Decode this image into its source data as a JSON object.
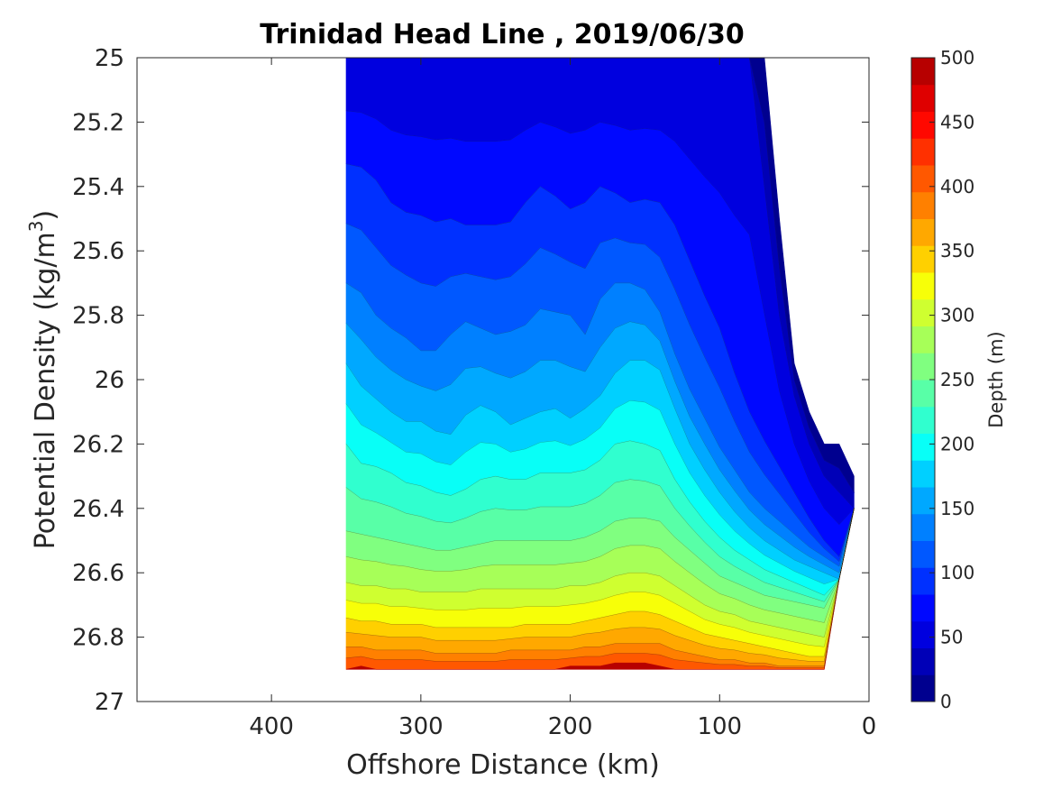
{
  "chart_data": {
    "type": "heatmap",
    "subtype": "filled-contour",
    "title": "Trinidad Head Line , 2019/06/30",
    "xlabel": "Offshore Distance (km)",
    "ylabel_main": "Potential Density (kg/m",
    "ylabel_sup": "3",
    "ylabel_tail": ")",
    "xlim": [
      490,
      0
    ],
    "x_reversed": true,
    "ylim": [
      25,
      27
    ],
    "y_reversed": true,
    "x_ticks": [
      "400",
      "300",
      "200",
      "100",
      "0"
    ],
    "y_ticks": [
      "25",
      "25.2",
      "25.4",
      "25.6",
      "25.8",
      "26",
      "26.2",
      "26.4",
      "26.6",
      "26.8",
      "27"
    ],
    "colorbar": {
      "label": "Depth (m)",
      "range": [
        0,
        500
      ],
      "ticks": [
        "0",
        "50",
        "100",
        "150",
        "200",
        "250",
        "300",
        "350",
        "400",
        "450",
        "500"
      ],
      "levels": [
        0,
        25,
        50,
        75,
        100,
        125,
        150,
        175,
        200,
        225,
        250,
        275,
        300,
        325,
        350,
        375,
        400,
        425,
        450,
        475,
        500
      ],
      "colors": [
        "#00008f",
        "#0000b7",
        "#0000df",
        "#0008ff",
        "#0030ff",
        "#0058ff",
        "#0080ff",
        "#00a8ff",
        "#00d0ff",
        "#08fff7",
        "#30ffcf",
        "#58ffa7",
        "#80ff80",
        "#a7ff58",
        "#cfff30",
        "#f7ff08",
        "#ffd000",
        "#ffa800",
        "#ff8000",
        "#ff5800",
        "#ff3000",
        "#ff0800",
        "#df0000",
        "#b70000"
      ]
    },
    "colormap": "jet",
    "x": [
      350,
      340,
      330,
      320,
      310,
      300,
      290,
      280,
      270,
      260,
      250,
      240,
      230,
      220,
      210,
      200,
      190,
      180,
      170,
      160,
      150,
      140,
      130,
      120,
      110,
      100,
      90,
      80,
      70,
      60,
      50,
      40,
      30,
      20,
      10
    ],
    "y_bottom": [
      26.9,
      26.9,
      26.9,
      26.9,
      26.9,
      26.9,
      26.9,
      26.9,
      26.9,
      26.9,
      26.9,
      26.9,
      26.9,
      26.9,
      26.9,
      26.9,
      26.9,
      26.9,
      26.9,
      26.9,
      26.9,
      26.9,
      26.9,
      26.9,
      26.9,
      26.9,
      26.9,
      26.9,
      26.9,
      26.9,
      26.9,
      26.9,
      26.9,
      26.62,
      26.4
    ],
    "y_top": [
      25,
      25,
      25,
      25,
      25,
      25,
      25,
      25,
      25,
      25,
      25,
      25,
      25,
      25,
      25,
      25,
      25,
      25,
      25,
      25,
      25,
      25,
      25,
      25,
      25,
      25,
      25,
      25,
      25,
      25.5,
      25.95,
      26.1,
      26.2,
      26.2,
      26.3
    ],
    "depth_50m": [
      25,
      25,
      25,
      25,
      25,
      25,
      25,
      25,
      25,
      25,
      25,
      25,
      25,
      25,
      25,
      25,
      25,
      25,
      25,
      25,
      25,
      25,
      25,
      25,
      25,
      25,
      25,
      25,
      25.4,
      25.8,
      26.05,
      26.2,
      26.3,
      26.35,
      26.4
    ],
    "depth_100m": [
      25.33,
      25.34,
      25.38,
      25.45,
      25.48,
      25.49,
      25.51,
      25.5,
      25.52,
      25.52,
      25.52,
      25.51,
      25.45,
      25.4,
      25.43,
      25.47,
      25.45,
      25.4,
      25.42,
      25.45,
      25.44,
      25.45,
      25.52,
      25.63,
      25.74,
      25.84,
      25.98,
      26.1,
      26.19,
      26.27,
      26.35,
      26.43,
      26.5,
      26.55,
      26.6
    ],
    "depth_150m": [
      25.7,
      25.73,
      25.8,
      25.84,
      25.87,
      25.91,
      25.91,
      25.86,
      25.82,
      25.84,
      25.86,
      25.85,
      25.83,
      25.78,
      25.79,
      25.8,
      25.86,
      25.75,
      25.7,
      25.7,
      25.72,
      25.79,
      25.92,
      26.03,
      26.12,
      26.21,
      26.28,
      26.35,
      26.4,
      26.44,
      26.48,
      26.52,
      26.55,
      26.58,
      26.6
    ],
    "depth_200m": [
      25.95,
      26.02,
      26.06,
      26.1,
      26.13,
      26.13,
      26.16,
      26.17,
      26.11,
      26.08,
      26.1,
      26.14,
      26.12,
      26.1,
      26.09,
      26.12,
      26.09,
      26.05,
      25.98,
      25.94,
      25.94,
      25.97,
      26.09,
      26.2,
      26.28,
      26.35,
      26.41,
      26.46,
      26.5,
      26.53,
      26.56,
      26.58,
      26.6,
      26.62,
      26.62
    ],
    "depth_250m": [
      26.2,
      26.26,
      26.27,
      26.29,
      26.32,
      26.33,
      26.35,
      26.36,
      26.34,
      26.31,
      26.3,
      26.31,
      26.31,
      26.29,
      26.29,
      26.29,
      26.28,
      26.25,
      26.2,
      26.19,
      26.2,
      26.22,
      26.31,
      26.38,
      26.44,
      26.49,
      26.53,
      26.56,
      26.59,
      26.61,
      26.63,
      26.65,
      26.67,
      26.68,
      26.68
    ],
    "depth_300m": [
      26.47,
      26.48,
      26.49,
      26.5,
      26.51,
      26.52,
      26.53,
      26.53,
      26.52,
      26.51,
      26.5,
      26.5,
      26.5,
      26.5,
      26.5,
      26.5,
      26.49,
      26.47,
      26.44,
      26.43,
      26.43,
      26.44,
      26.49,
      26.53,
      26.57,
      26.61,
      26.63,
      26.65,
      26.67,
      26.68,
      26.69,
      26.7,
      26.71,
      26.72,
      26.72
    ],
    "depth_350m": [
      26.63,
      26.64,
      26.64,
      26.65,
      26.65,
      26.66,
      26.66,
      26.66,
      26.66,
      26.65,
      26.65,
      26.65,
      26.65,
      26.65,
      26.65,
      26.64,
      26.64,
      26.63,
      26.61,
      26.6,
      26.6,
      26.61,
      26.64,
      26.67,
      26.7,
      26.72,
      26.73,
      26.75,
      26.76,
      26.77,
      26.78,
      26.79,
      26.8,
      26.8,
      26.8
    ],
    "depth_400m": [
      26.74,
      26.75,
      26.75,
      26.76,
      26.76,
      26.76,
      26.77,
      26.77,
      26.77,
      26.77,
      26.77,
      26.77,
      26.76,
      26.76,
      26.76,
      26.76,
      26.75,
      26.74,
      26.73,
      26.72,
      26.72,
      26.73,
      26.75,
      26.77,
      26.79,
      26.8,
      26.81,
      26.82,
      26.83,
      26.84,
      26.85,
      26.86,
      26.86,
      26.86,
      26.86
    ],
    "depth_450m": [
      26.83,
      26.83,
      26.84,
      26.84,
      26.84,
      26.84,
      26.85,
      26.85,
      26.85,
      26.85,
      26.85,
      26.84,
      26.84,
      26.84,
      26.84,
      26.84,
      26.83,
      26.83,
      26.82,
      26.82,
      26.82,
      26.82,
      26.84,
      26.85,
      26.86,
      26.87,
      26.87,
      26.88,
      26.88,
      26.89,
      26.89,
      26.89,
      26.89,
      26.89,
      26.89
    ],
    "depth_500m": [
      26.9,
      26.89,
      26.9,
      26.9,
      26.9,
      26.9,
      26.9,
      26.9,
      26.9,
      26.9,
      26.9,
      26.9,
      26.9,
      26.9,
      26.9,
      26.89,
      26.89,
      26.89,
      26.88,
      26.88,
      26.88,
      26.89,
      26.9,
      26.9,
      26.9,
      26.9,
      26.9,
      26.9,
      26.9,
      26.9,
      26.9,
      26.9,
      26.9,
      26.9,
      26.9
    ]
  }
}
